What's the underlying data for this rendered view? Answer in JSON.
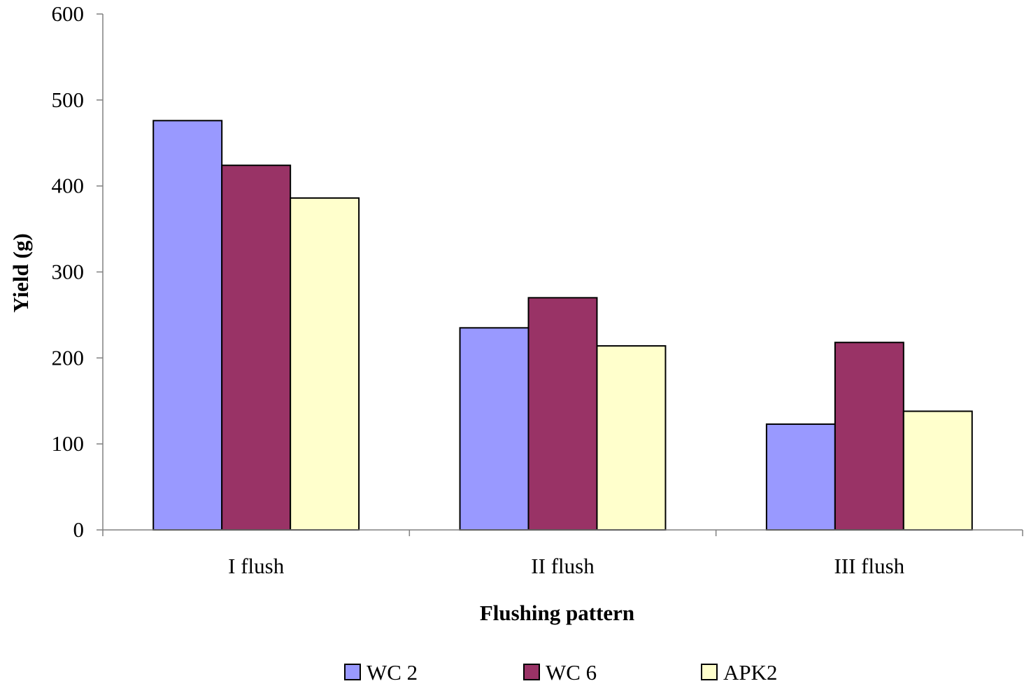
{
  "chart_data": {
    "type": "bar",
    "title": "",
    "xlabel": "Flushing pattern",
    "ylabel": "Yield (g)",
    "categories": [
      "I flush",
      "II flush",
      "III flush"
    ],
    "series": [
      {
        "name": "WC 2",
        "color": "#9999ff",
        "values": [
          476,
          235,
          123
        ]
      },
      {
        "name": "WC 6",
        "color": "#993366",
        "values": [
          424,
          270,
          218
        ]
      },
      {
        "name": "APK2",
        "color": "#ffffcc",
        "values": [
          386,
          214,
          138
        ]
      }
    ],
    "ylim": [
      0,
      600
    ],
    "yticks": [
      0,
      100,
      200,
      300,
      400,
      500,
      600
    ],
    "grid": false,
    "legend_position": "bottom"
  }
}
